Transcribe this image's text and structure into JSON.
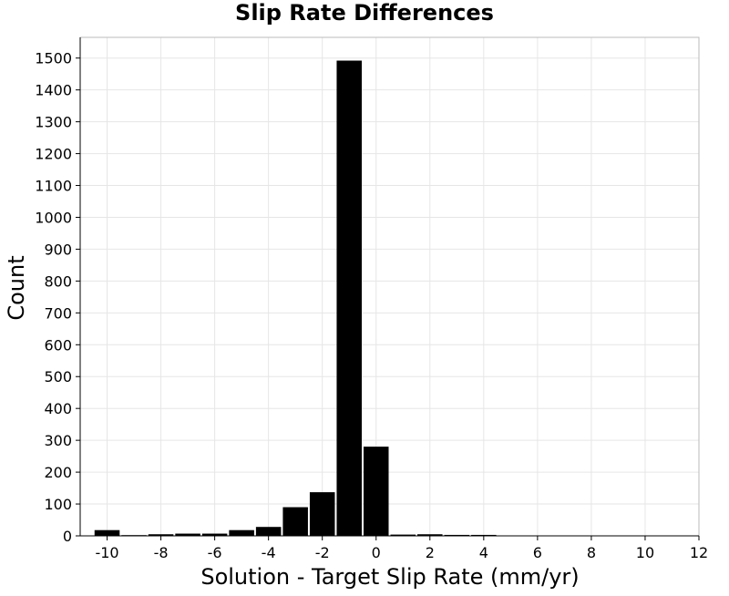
{
  "chart_data": {
    "type": "bar",
    "title": "Slip Rate Differences",
    "xlabel": "Solution - Target Slip Rate (mm/yr)",
    "ylabel": "Count",
    "xlim": [
      -11,
      12
    ],
    "ylim": [
      0,
      1565
    ],
    "bin_width": 1,
    "x_ticks": [
      -10,
      -8,
      -6,
      -4,
      -2,
      0,
      2,
      4,
      6,
      8,
      10,
      12
    ],
    "y_ticks": [
      0,
      100,
      200,
      300,
      400,
      500,
      600,
      700,
      800,
      900,
      1000,
      1100,
      1200,
      1300,
      1400,
      1500
    ],
    "grid": true,
    "bins": [
      {
        "x": -10,
        "count": 18
      },
      {
        "x": -9,
        "count": 2
      },
      {
        "x": -8,
        "count": 5
      },
      {
        "x": -7,
        "count": 7
      },
      {
        "x": -6,
        "count": 7
      },
      {
        "x": -5,
        "count": 18
      },
      {
        "x": -4,
        "count": 28
      },
      {
        "x": -3,
        "count": 90
      },
      {
        "x": -2,
        "count": 137
      },
      {
        "x": -1,
        "count": 1492
      },
      {
        "x": 0,
        "count": 280
      },
      {
        "x": 1,
        "count": 4
      },
      {
        "x": 2,
        "count": 5
      },
      {
        "x": 3,
        "count": 3
      },
      {
        "x": 4,
        "count": 3
      }
    ],
    "colors": {
      "bar": "#000000",
      "bar_edge": "#ffffff",
      "grid": "#e6e6e6",
      "frame": "#bbbbbb",
      "axis": "#000000"
    }
  }
}
